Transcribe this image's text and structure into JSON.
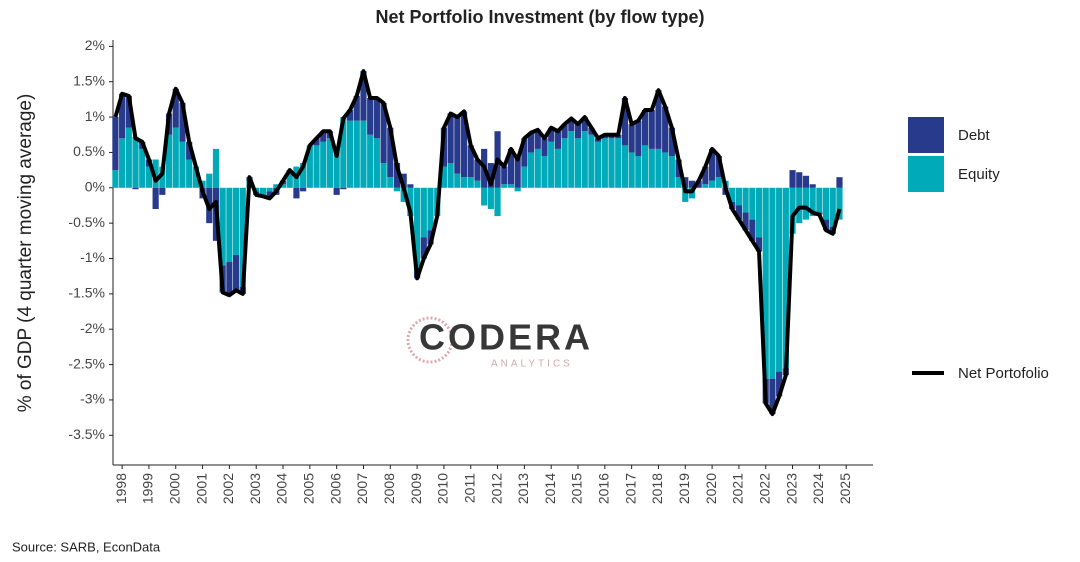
{
  "chart_data": {
    "type": "bar",
    "title": "Net Portfolio Investment (by flow type)",
    "y_label": "% of GDP (4 quarter moving average)",
    "source": "Source: SARB, EconData",
    "watermark": {
      "name": "CODERA",
      "sub": "ANALYTICS"
    },
    "stacked": true,
    "x": [
      1997.75,
      1998,
      1998.25,
      1998.5,
      1998.75,
      1999,
      1999.25,
      1999.5,
      1999.75,
      2000,
      2000.25,
      2000.5,
      2000.75,
      2001,
      2001.25,
      2001.5,
      2001.75,
      2002,
      2002.25,
      2002.5,
      2002.75,
      2003,
      2003.25,
      2003.5,
      2003.75,
      2004,
      2004.25,
      2004.5,
      2004.75,
      2005,
      2005.25,
      2005.5,
      2005.75,
      2006,
      2006.25,
      2006.5,
      2006.75,
      2007,
      2007.25,
      2007.5,
      2007.75,
      2008,
      2008.25,
      2008.5,
      2008.75,
      2009,
      2009.25,
      2009.5,
      2009.75,
      2010,
      2010.25,
      2010.5,
      2010.75,
      2011,
      2011.25,
      2011.5,
      2011.75,
      2012,
      2012.25,
      2012.5,
      2012.75,
      2013,
      2013.25,
      2013.5,
      2013.75,
      2014,
      2014.25,
      2014.5,
      2014.75,
      2015,
      2015.25,
      2015.5,
      2015.75,
      2016,
      2016.25,
      2016.5,
      2016.75,
      2017,
      2017.25,
      2017.5,
      2017.75,
      2018,
      2018.25,
      2018.5,
      2018.75,
      2019,
      2019.25,
      2019.5,
      2019.75,
      2020,
      2020.25,
      2020.5,
      2020.75,
      2021,
      2021.25,
      2021.5,
      2021.75,
      2022,
      2022.25,
      2022.5,
      2022.75,
      2023,
      2023.25,
      2023.5,
      2023.75,
      2024,
      2024.25,
      2024.5,
      2024.75
    ],
    "series": [
      {
        "name": "Debt",
        "color": "#283a8c",
        "values": [
          0.75,
          0.63,
          0.45,
          -0.02,
          0.1,
          0.1,
          -0.3,
          -0.1,
          0.3,
          0.55,
          0.55,
          0.25,
          0.0,
          -0.15,
          -0.5,
          -0.75,
          -0.38,
          -0.47,
          -0.5,
          -0.1,
          0.05,
          -0.05,
          -0.02,
          -0.1,
          -0.1,
          0.05,
          0.05,
          -0.15,
          -0.05,
          0.0,
          0.1,
          0.15,
          0.1,
          -0.1,
          -0.02,
          0.15,
          0.35,
          0.7,
          0.52,
          0.57,
          0.85,
          0.7,
          0.35,
          0.2,
          0.05,
          -0.08,
          -0.3,
          -0.2,
          0.0,
          0.55,
          0.7,
          0.8,
          0.93,
          0.45,
          0.3,
          0.55,
          0.35,
          0.8,
          0.25,
          0.5,
          0.45,
          0.4,
          0.28,
          0.27,
          0.25,
          0.2,
          0.25,
          0.2,
          0.18,
          0.2,
          0.2,
          0.1,
          0.05,
          0.05,
          0.05,
          0.05,
          0.67,
          0.4,
          0.5,
          0.5,
          0.55,
          0.83,
          0.65,
          0.4,
          0.25,
          0.15,
          0.1,
          0.1,
          0.25,
          0.45,
          0.3,
          -0.1,
          -0.1,
          -0.2,
          -0.25,
          -0.3,
          -0.2,
          -0.35,
          -0.5,
          -0.35,
          -0.1,
          0.25,
          0.22,
          0.17,
          0.05,
          -0.03,
          -0.15,
          -0.1,
          0.15
        ]
      },
      {
        "name": "Equity",
        "color": "#00aab8",
        "values": [
          0.25,
          0.7,
          0.85,
          0.72,
          0.55,
          0.3,
          0.4,
          0.3,
          0.75,
          0.85,
          0.65,
          0.4,
          0.3,
          0.1,
          0.2,
          0.55,
          -1.1,
          -1.05,
          -0.95,
          -1.4,
          0.1,
          -0.05,
          -0.1,
          -0.05,
          0.05,
          0.05,
          0.2,
          0.3,
          0.35,
          0.6,
          0.6,
          0.65,
          0.7,
          0.55,
          1.0,
          0.95,
          0.95,
          0.95,
          0.75,
          0.7,
          0.35,
          0.15,
          -0.05,
          -0.2,
          -0.4,
          -1.2,
          -0.7,
          -0.6,
          -0.4,
          0.3,
          0.35,
          0.2,
          0.15,
          0.15,
          0.1,
          -0.25,
          -0.3,
          -0.4,
          0.05,
          0.05,
          -0.05,
          0.3,
          0.5,
          0.55,
          0.45,
          0.65,
          0.55,
          0.7,
          0.8,
          0.7,
          0.8,
          0.75,
          0.65,
          0.7,
          0.7,
          0.7,
          0.6,
          0.5,
          0.45,
          0.6,
          0.55,
          0.55,
          0.5,
          0.45,
          0.15,
          -0.2,
          -0.15,
          0.0,
          0.05,
          0.1,
          0.15,
          0.1,
          -0.2,
          -0.25,
          -0.35,
          -0.45,
          -0.7,
          -2.7,
          -2.7,
          -2.6,
          -2.55,
          -0.65,
          -0.5,
          -0.45,
          -0.4,
          -0.35,
          -0.45,
          -0.55,
          -0.45
        ]
      },
      {
        "name": "Net Portofolio",
        "type": "line",
        "color": "#000000",
        "values": [
          1.0,
          1.33,
          1.3,
          0.7,
          0.65,
          0.4,
          0.1,
          0.2,
          1.05,
          1.4,
          1.2,
          0.65,
          0.3,
          -0.05,
          -0.3,
          -0.2,
          -1.48,
          -1.52,
          -1.45,
          -1.5,
          0.15,
          -0.1,
          -0.12,
          -0.15,
          -0.05,
          0.1,
          0.25,
          0.15,
          0.3,
          0.6,
          0.7,
          0.8,
          0.8,
          0.45,
          0.98,
          1.1,
          1.3,
          1.65,
          1.27,
          1.27,
          1.2,
          0.85,
          0.3,
          0.0,
          -0.35,
          -1.28,
          -1.0,
          -0.8,
          -0.4,
          0.85,
          1.05,
          1.0,
          1.08,
          0.6,
          0.4,
          0.3,
          0.05,
          0.4,
          0.3,
          0.55,
          0.4,
          0.7,
          0.78,
          0.82,
          0.7,
          0.85,
          0.8,
          0.9,
          0.98,
          0.9,
          1.0,
          0.85,
          0.7,
          0.75,
          0.75,
          0.75,
          1.27,
          0.9,
          0.95,
          1.1,
          1.1,
          1.38,
          1.15,
          0.85,
          0.4,
          -0.05,
          -0.05,
          0.1,
          0.3,
          0.55,
          0.45,
          0.0,
          -0.3,
          -0.45,
          -0.6,
          -0.75,
          -0.9,
          -3.05,
          -3.2,
          -2.95,
          -2.65,
          -0.4,
          -0.28,
          -0.28,
          -0.35,
          -0.38,
          -0.6,
          -0.65,
          -0.3
        ]
      }
    ],
    "xlim": [
      1997.66,
      2026.0
    ],
    "xticks": [
      1998,
      1999,
      2000,
      2001,
      2002,
      2003,
      2004,
      2005,
      2006,
      2007,
      2008,
      2009,
      2010,
      2011,
      2012,
      2013,
      2014,
      2015,
      2016,
      2017,
      2018,
      2019,
      2020,
      2021,
      2022,
      2023,
      2024,
      2025
    ],
    "ylim": [
      -3.92,
      2.09
    ],
    "yticks": [
      {
        "value": 2,
        "label": "2%"
      },
      {
        "value": 1.5,
        "label": "1.5%"
      },
      {
        "value": 1,
        "label": "1%"
      },
      {
        "value": 0.5,
        "label": "0.5%"
      },
      {
        "value": 0,
        "label": "0%"
      },
      {
        "value": -0.5,
        "label": "-0.5%"
      },
      {
        "value": -1,
        "label": "-1%"
      },
      {
        "value": -1.5,
        "label": "-1.5%"
      },
      {
        "value": -2,
        "label": "-2%"
      },
      {
        "value": -2.5,
        "label": "-2.5%"
      },
      {
        "value": -3,
        "label": "-3%"
      },
      {
        "value": -3.5,
        "label": "-3.5%"
      }
    ],
    "grid": false
  }
}
